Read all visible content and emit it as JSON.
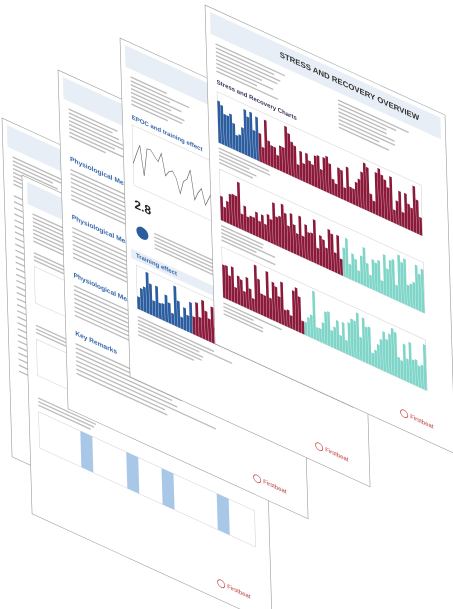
{
  "pages": [
    {
      "title": "",
      "sections": [],
      "logo": "Firstbeat"
    },
    {
      "title": "HEART RATE",
      "sections": [],
      "logo": "Firstbeat"
    },
    {
      "title": "",
      "sections": [
        "Physiological Measurements",
        "Physiological Measurements",
        "Physiological Measurements",
        "Key Remarks"
      ],
      "logo": "Firstbeat"
    },
    {
      "title": "",
      "sections": [
        "EPOC and training effect",
        "Training effect"
      ],
      "big_number": "2.8",
      "logo": "Firstbeat"
    },
    {
      "title": "STRESS AND RECOVERY OVERVIEW",
      "sections": [
        "Stress and Recovery Charts"
      ],
      "logo": "Firstbeat"
    }
  ]
}
